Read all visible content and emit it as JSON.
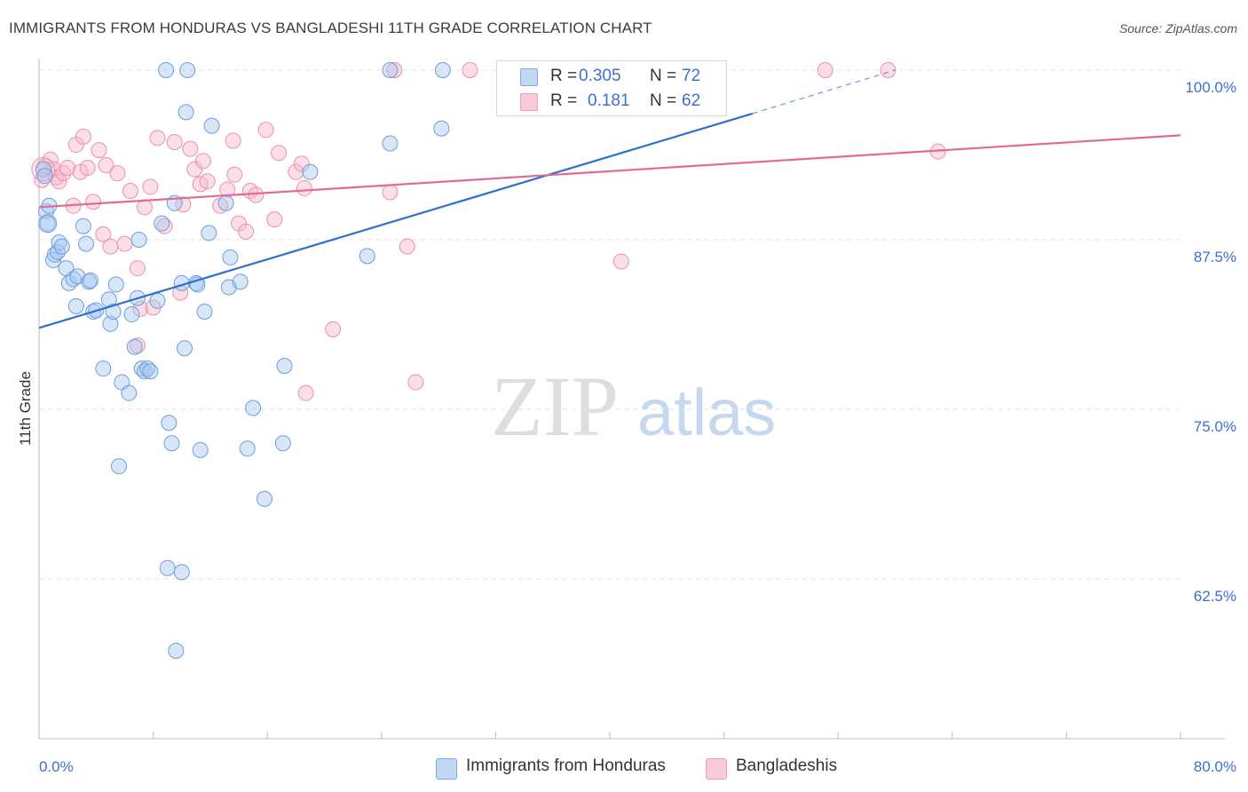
{
  "title": "IMMIGRANTS FROM HONDURAS VS BANGLADESHI 11TH GRADE CORRELATION CHART",
  "source": "Source: ZipAtlas.com",
  "watermark": {
    "part1": "ZIP",
    "part2": "atlas"
  },
  "legend_top": {
    "rows": [
      {
        "r_label": "R =",
        "r_value": "0.305",
        "n_label": "N =",
        "n_value": "72"
      },
      {
        "r_label": "R =",
        "r_value": "0.181",
        "n_label": "N =",
        "n_value": "62"
      }
    ]
  },
  "legend_bottom": [
    "Immigrants from Honduras",
    "Bangladeshis"
  ],
  "colors": {
    "blue_fill": "#a9c8f0",
    "blue_stroke": "#6b9fe0",
    "blue_line": "#2e6fd1",
    "pink_fill": "#f7b9cc",
    "pink_stroke": "#ea91ae",
    "pink_line": "#e06a96",
    "tick_label": "#3d6fd0",
    "grid": "#e2e2e2"
  },
  "chart_data": {
    "type": "scatter",
    "title": "IMMIGRANTS FROM HONDURAS VS BANGLADESHI 11TH GRADE CORRELATION CHART",
    "xlabel": "",
    "ylabel": "11th Grade",
    "xlim": [
      0,
      80
    ],
    "ylim": [
      51,
      101
    ],
    "x_tick_labels": [
      "0.0%",
      "80.0%"
    ],
    "y_ticks": [
      62.5,
      75.0,
      87.5,
      100.0
    ],
    "y_tick_labels": [
      "62.5%",
      "75.0%",
      "87.5%",
      "100.0%"
    ],
    "grid": "horizontal dashed",
    "legend_placement": "bottom",
    "series": [
      {
        "name": "Immigrants from Honduras",
        "r": 0.305,
        "n": 72,
        "color": "#a9c8f0",
        "trend": {
          "x": [
            0,
            50
          ],
          "y": [
            81.0,
            96.8
          ],
          "dashed_to": [
            60,
            100.0
          ]
        },
        "points": [
          [
            0.3,
            92.7
          ],
          [
            0.4,
            92.2
          ],
          [
            0.5,
            89.6
          ],
          [
            0.6,
            88.7
          ],
          [
            0.7,
            90.0
          ],
          [
            1.0,
            86.0
          ],
          [
            1.1,
            86.4
          ],
          [
            1.3,
            86.6
          ],
          [
            1.4,
            87.3
          ],
          [
            1.6,
            87.0
          ],
          [
            1.9,
            85.4
          ],
          [
            2.1,
            84.3
          ],
          [
            2.4,
            84.6
          ],
          [
            2.6,
            82.6
          ],
          [
            2.7,
            84.8
          ],
          [
            3.1,
            88.5
          ],
          [
            3.3,
            87.2
          ],
          [
            3.5,
            84.4
          ],
          [
            3.6,
            84.5
          ],
          [
            3.8,
            82.2
          ],
          [
            4.0,
            82.3
          ],
          [
            4.5,
            78.0
          ],
          [
            4.9,
            83.1
          ],
          [
            5.0,
            81.3
          ],
          [
            5.2,
            82.2
          ],
          [
            5.4,
            84.2
          ],
          [
            5.8,
            77.0
          ],
          [
            6.3,
            76.2
          ],
          [
            6.5,
            82.0
          ],
          [
            6.7,
            79.6
          ],
          [
            6.9,
            83.2
          ],
          [
            7.0,
            87.5
          ],
          [
            7.2,
            78.0
          ],
          [
            7.4,
            77.8
          ],
          [
            7.6,
            78.0
          ],
          [
            7.8,
            77.8
          ],
          [
            8.3,
            83.0
          ],
          [
            8.6,
            88.7
          ],
          [
            9.0,
            63.3
          ],
          [
            9.1,
            74.0
          ],
          [
            9.3,
            72.5
          ],
          [
            9.5,
            90.2
          ],
          [
            10.0,
            84.3
          ],
          [
            10.2,
            79.5
          ],
          [
            10.3,
            96.9
          ],
          [
            10.4,
            100.0
          ],
          [
            11.0,
            84.3
          ],
          [
            11.1,
            84.2
          ],
          [
            11.3,
            72.0
          ],
          [
            11.6,
            82.2
          ],
          [
            11.9,
            88.0
          ],
          [
            12.1,
            95.9
          ],
          [
            13.1,
            90.2
          ],
          [
            13.3,
            84.0
          ],
          [
            13.4,
            86.2
          ],
          [
            14.1,
            84.4
          ],
          [
            14.6,
            72.1
          ],
          [
            15.0,
            75.1
          ],
          [
            15.8,
            68.4
          ],
          [
            17.1,
            72.5
          ],
          [
            17.2,
            78.2
          ],
          [
            19.0,
            92.5
          ],
          [
            23.0,
            86.3
          ],
          [
            24.6,
            94.6
          ],
          [
            28.2,
            95.7
          ],
          [
            28.3,
            100.0
          ],
          [
            41.9,
            100.0
          ],
          [
            8.9,
            100.0
          ],
          [
            9.6,
            57.2
          ],
          [
            10.0,
            63.0
          ],
          [
            5.6,
            70.8
          ],
          [
            24.6,
            100.0
          ]
        ]
      },
      {
        "name": "Bangladeshis",
        "r": 0.181,
        "n": 62,
        "color": "#f7b9cc",
        "trend": {
          "x": [
            0,
            80
          ],
          "y": [
            89.9,
            95.2
          ]
        },
        "points": [
          [
            0.2,
            91.9
          ],
          [
            0.4,
            92.9
          ],
          [
            0.8,
            93.4
          ],
          [
            1.0,
            92.7
          ],
          [
            1.2,
            92.1
          ],
          [
            1.4,
            91.8
          ],
          [
            1.7,
            92.4
          ],
          [
            2.0,
            92.8
          ],
          [
            2.4,
            90.0
          ],
          [
            2.6,
            94.5
          ],
          [
            2.9,
            92.5
          ],
          [
            3.1,
            95.1
          ],
          [
            3.4,
            92.8
          ],
          [
            3.8,
            90.3
          ],
          [
            4.2,
            94.1
          ],
          [
            4.5,
            87.9
          ],
          [
            4.7,
            93.0
          ],
          [
            5.0,
            87.0
          ],
          [
            5.5,
            92.4
          ],
          [
            6.0,
            87.2
          ],
          [
            6.4,
            91.1
          ],
          [
            6.9,
            85.4
          ],
          [
            7.1,
            82.4
          ],
          [
            7.4,
            89.9
          ],
          [
            7.8,
            91.4
          ],
          [
            8.0,
            82.5
          ],
          [
            8.3,
            95.0
          ],
          [
            8.8,
            88.5
          ],
          [
            9.5,
            94.7
          ],
          [
            9.9,
            83.6
          ],
          [
            10.1,
            90.1
          ],
          [
            10.6,
            94.2
          ],
          [
            10.9,
            92.7
          ],
          [
            11.3,
            91.6
          ],
          [
            11.5,
            93.3
          ],
          [
            11.8,
            91.8
          ],
          [
            12.7,
            90.0
          ],
          [
            13.2,
            91.2
          ],
          [
            13.6,
            94.8
          ],
          [
            13.7,
            92.3
          ],
          [
            14.0,
            88.7
          ],
          [
            14.5,
            88.1
          ],
          [
            14.8,
            91.1
          ],
          [
            15.2,
            90.8
          ],
          [
            15.9,
            95.6
          ],
          [
            16.5,
            89.0
          ],
          [
            16.8,
            93.9
          ],
          [
            18.0,
            92.5
          ],
          [
            18.4,
            93.1
          ],
          [
            18.6,
            91.3
          ],
          [
            18.7,
            76.2
          ],
          [
            20.6,
            80.9
          ],
          [
            24.6,
            91.0
          ],
          [
            24.9,
            100.0
          ],
          [
            25.8,
            87.0
          ],
          [
            26.4,
            77.0
          ],
          [
            30.2,
            100.0
          ],
          [
            40.8,
            85.9
          ],
          [
            55.1,
            100.0
          ],
          [
            59.5,
            100.0
          ],
          [
            63.0,
            94.0
          ],
          [
            6.9,
            79.7
          ]
        ]
      }
    ]
  }
}
